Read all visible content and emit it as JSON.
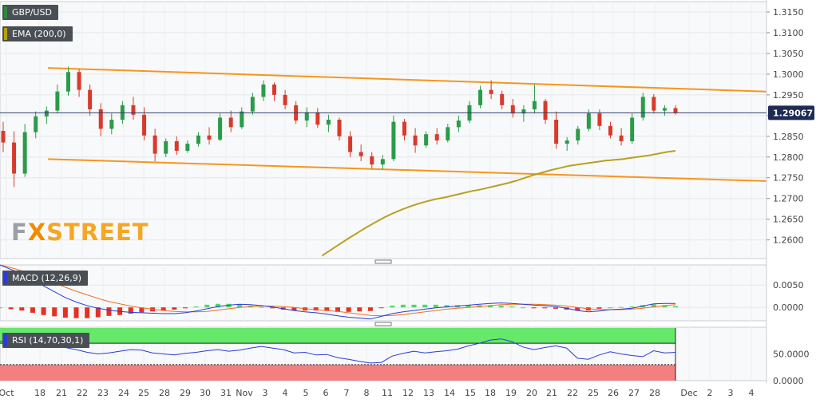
{
  "panels": {
    "price_label": "GBP/USD",
    "ema_label": "EMA (200,0)",
    "macd_label": "MACD (12,26,9)",
    "rsi_label": "RSI (14,70,30,1)",
    "last_price": "1.29067"
  },
  "logo": {
    "part1": "F",
    "part2": "X",
    "part3": "STREET"
  },
  "colors": {
    "bull": "#2b9b4a",
    "bear": "#d93a2b",
    "ema": "#b8a01f",
    "channel": "#f5961e",
    "macd": "#2a3bd8",
    "signal": "#f07020",
    "hist_pos": "#4cd964",
    "hist_neg": "#e63022",
    "rsi": "#2a3bd8",
    "overbought": "#66e86a",
    "oversold": "#f28080"
  },
  "chart_data": [
    {
      "type": "candlestick",
      "pair": "GBP/USD",
      "y_ticks": [
        "1.3150",
        "1.3100",
        "1.3050",
        "1.3000",
        "1.2950",
        "1.2900",
        "1.2850",
        "1.2800",
        "1.2750",
        "1.2700",
        "1.2650",
        "1.2600"
      ],
      "ylim": [
        1.2555,
        1.3175
      ],
      "x_ticks": [
        "Oct",
        "18",
        "21",
        "22",
        "23",
        "24",
        "25",
        "28",
        "29",
        "30",
        "31",
        "Nov",
        "3",
        "4",
        "5",
        "6",
        "7",
        "8",
        "11",
        "12",
        "13",
        "14",
        "15",
        "18",
        "19",
        "20",
        "21",
        "22",
        "25",
        "26",
        "27",
        "28",
        "Dec",
        "2",
        "3",
        "4"
      ],
      "candles": [
        [
          1.2863,
          1.2885,
          1.2812,
          1.2835
        ],
        [
          1.2835,
          1.2862,
          1.2728,
          1.276
        ],
        [
          1.276,
          1.288,
          1.2752,
          1.286
        ],
        [
          1.286,
          1.291,
          1.2845,
          1.2898
        ],
        [
          1.2898,
          1.2922,
          1.288,
          1.2912
        ],
        [
          1.2912,
          1.2975,
          1.2905,
          1.2958
        ],
        [
          1.2958,
          1.3018,
          1.2948,
          1.3005
        ],
        [
          1.3005,
          1.3012,
          1.2945,
          1.2962
        ],
        [
          1.2962,
          1.2975,
          1.29,
          1.2915
        ],
        [
          1.2915,
          1.293,
          1.285,
          1.2868
        ],
        [
          1.2868,
          1.2905,
          1.2855,
          1.289
        ],
        [
          1.289,
          1.2935,
          1.288,
          1.2925
        ],
        [
          1.2925,
          1.2945,
          1.289,
          1.2902
        ],
        [
          1.2902,
          1.292,
          1.284,
          1.2852
        ],
        [
          1.2852,
          1.2868,
          1.279,
          1.2808
        ],
        [
          1.2808,
          1.2845,
          1.28,
          1.2838
        ],
        [
          1.2838,
          1.285,
          1.2805,
          1.2815
        ],
        [
          1.2815,
          1.284,
          1.281,
          1.2832
        ],
        [
          1.2832,
          1.286,
          1.2825,
          1.2852
        ],
        [
          1.2852,
          1.2872,
          1.283,
          1.2842
        ],
        [
          1.2842,
          1.2905,
          1.2838,
          1.2895
        ],
        [
          1.2895,
          1.2912,
          1.286,
          1.2872
        ],
        [
          1.2872,
          1.292,
          1.2868,
          1.291
        ],
        [
          1.291,
          1.2955,
          1.2902,
          1.2945
        ],
        [
          1.2945,
          1.2985,
          1.2935,
          1.2975
        ],
        [
          1.2975,
          1.298,
          1.2935,
          1.295
        ],
        [
          1.295,
          1.2962,
          1.2915,
          1.2925
        ],
        [
          1.2925,
          1.2935,
          1.288,
          1.2888
        ],
        [
          1.2888,
          1.292,
          1.2872,
          1.2908
        ],
        [
          1.2908,
          1.2918,
          1.287,
          1.2878
        ],
        [
          1.2878,
          1.2902,
          1.286,
          1.289
        ],
        [
          1.289,
          1.2895,
          1.284,
          1.285
        ],
        [
          1.285,
          1.2862,
          1.28,
          1.2812
        ],
        [
          1.2812,
          1.283,
          1.279,
          1.2802
        ],
        [
          1.2802,
          1.2812,
          1.2772,
          1.2782
        ],
        [
          1.2782,
          1.2805,
          1.277,
          1.2795
        ],
        [
          1.2795,
          1.29,
          1.279,
          1.2885
        ],
        [
          1.2885,
          1.2892,
          1.284,
          1.2852
        ],
        [
          1.2852,
          1.287,
          1.281,
          1.2828
        ],
        [
          1.2828,
          1.2862,
          1.2822,
          1.2855
        ],
        [
          1.2855,
          1.287,
          1.283,
          1.284
        ],
        [
          1.284,
          1.288,
          1.2835,
          1.2872
        ],
        [
          1.2872,
          1.29,
          1.286,
          1.2888
        ],
        [
          1.2888,
          1.2935,
          1.2882,
          1.2925
        ],
        [
          1.2925,
          1.2972,
          1.2918,
          1.2962
        ],
        [
          1.2962,
          1.2985,
          1.294,
          1.2952
        ],
        [
          1.2952,
          1.296,
          1.2915,
          1.2925
        ],
        [
          1.2925,
          1.294,
          1.2895,
          1.2905
        ],
        [
          1.2905,
          1.2925,
          1.2885,
          1.2915
        ],
        [
          1.2915,
          1.2975,
          1.2905,
          1.2935
        ],
        [
          1.2935,
          1.294,
          1.288,
          1.289
        ],
        [
          1.289,
          1.291,
          1.282,
          1.2832
        ],
        [
          1.2832,
          1.2848,
          1.2815,
          1.284
        ],
        [
          1.284,
          1.2875,
          1.283,
          1.2868
        ],
        [
          1.2868,
          1.2915,
          1.2862,
          1.2905
        ],
        [
          1.2905,
          1.2915,
          1.2865,
          1.2875
        ],
        [
          1.2875,
          1.2885,
          1.2845,
          1.2852
        ],
        [
          1.2852,
          1.287,
          1.2828,
          1.2838
        ],
        [
          1.2838,
          1.2905,
          1.2832,
          1.2895
        ],
        [
          1.2895,
          1.2955,
          1.2888,
          1.2945
        ],
        [
          1.2945,
          1.2952,
          1.2905,
          1.2912
        ],
        [
          1.2912,
          1.2925,
          1.29,
          1.2918
        ],
        [
          1.2918,
          1.2925,
          1.2902,
          1.2907
        ]
      ],
      "ema_200": [
        1.2255,
        1.2268,
        1.228,
        1.2293,
        1.2306,
        1.232,
        1.2334,
        1.2348,
        1.2361,
        1.2375,
        1.2388,
        1.2402,
        1.2416,
        1.243,
        1.2444,
        1.2458,
        1.2472,
        1.2487,
        1.2502,
        1.2517,
        1.2532,
        1.2547,
        1.2562,
        1.2576,
        1.259,
        1.2604,
        1.2617,
        1.263,
        1.2642,
        1.2654,
        1.2664,
        1.2673,
        1.2681,
        1.2688,
        1.2694,
        1.2699,
        1.2703,
        1.2708,
        1.2713,
        1.2718,
        1.2722,
        1.2727,
        1.2732,
        1.2737,
        1.2743,
        1.275,
        1.2757,
        1.2763,
        1.2769,
        1.2774,
        1.2779,
        1.2782,
        1.2785,
        1.2788,
        1.2791,
        1.2793,
        1.2795,
        1.2798,
        1.2801,
        1.2804,
        1.2808,
        1.2812,
        1.2815
      ],
      "channel_upper": [
        [
          1.3015,
          1.2958
        ]
      ],
      "channel_lower": [
        [
          1.2795,
          1.2742
        ]
      ],
      "last_price": 1.29067
    },
    {
      "type": "macd",
      "title": "MACD (12,26,9)",
      "y_ticks": [
        "0.0050",
        "0.0000"
      ],
      "ylim": [
        -0.003,
        0.0095
      ],
      "macd": [
        0.0095,
        0.0085,
        0.0075,
        0.0062,
        0.0048,
        0.0035,
        0.0022,
        0.0012,
        0.0004,
        -0.0002,
        -0.0006,
        -0.0009,
        -0.0011,
        -0.0012,
        -0.0013,
        -0.0014,
        -0.0014,
        -0.0012,
        -0.0008,
        -0.0003,
        0.0002,
        0.0005,
        0.0007,
        0.0006,
        0.0004,
        0.0001,
        -0.0003,
        -0.0007,
        -0.001,
        -0.0012,
        -0.0015,
        -0.0019,
        -0.0022,
        -0.0024,
        -0.0026,
        -0.002,
        -0.0014,
        -0.001,
        -0.0007,
        -0.0004,
        -0.0001,
        0.0001,
        0.0003,
        0.0005,
        0.0007,
        0.0009,
        0.001,
        0.0009,
        0.0007,
        0.0005,
        0.0004,
        0.0002,
        -0.0002,
        -0.0007,
        -0.001,
        -0.0008,
        -0.0005,
        -0.0004,
        -0.0002,
        0.0003,
        0.0008,
        0.0009,
        0.0009
      ],
      "signal": [
        0.0095,
        0.0089,
        0.0082,
        0.0074,
        0.0065,
        0.0055,
        0.0045,
        0.0036,
        0.0028,
        0.002,
        0.0013,
        0.0008,
        0.0003,
        -0.0001,
        -0.0004,
        -0.0007,
        -0.0009,
        -0.001,
        -0.001,
        -0.0009,
        -0.0006,
        -0.0003,
        0.0,
        0.0002,
        0.0003,
        0.0003,
        0.0002,
        0.0,
        -0.0003,
        -0.0005,
        -0.0007,
        -0.0009,
        -0.0012,
        -0.0015,
        -0.0018,
        -0.0019,
        -0.0018,
        -0.0016,
        -0.0013,
        -0.001,
        -0.0007,
        -0.0004,
        -0.0002,
        0.0,
        0.0002,
        0.0004,
        0.0006,
        0.0007,
        0.0007,
        0.0007,
        0.0006,
        0.0005,
        0.0003,
        0.0,
        -0.0003,
        -0.0005,
        -0.0005,
        -0.0005,
        -0.0004,
        -0.0002,
        0.0001,
        0.0004,
        0.0006
      ]
    },
    {
      "type": "rsi",
      "title": "RSI (14,70,30,1)",
      "y_ticks": [
        "50.0000",
        "0.0000"
      ],
      "ylim": [
        0,
        100
      ],
      "overbought": 70,
      "oversold": 30,
      "values": [
        74,
        71,
        70,
        72,
        70,
        67,
        62,
        58,
        53,
        50,
        52,
        55,
        58,
        57,
        52,
        50,
        48,
        51,
        53,
        56,
        58,
        55,
        57,
        61,
        64,
        61,
        58,
        52,
        53,
        48,
        49,
        43,
        40,
        36,
        33,
        34,
        46,
        51,
        55,
        52,
        54,
        56,
        59,
        65,
        70,
        76,
        78,
        73,
        63,
        58,
        62,
        65,
        61,
        42,
        40,
        48,
        54,
        50,
        47,
        45,
        56,
        52,
        53
      ]
    }
  ]
}
